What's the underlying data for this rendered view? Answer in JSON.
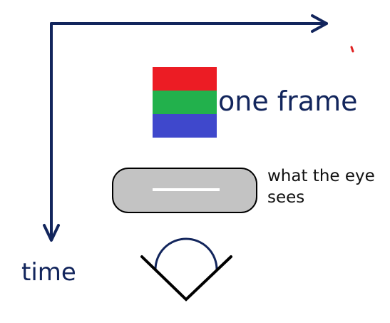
{
  "labels": {
    "time_axis": "time",
    "frame": "one frame",
    "eye_sees": "what the eye sees"
  },
  "frame_stripes": [
    {
      "color": "#ec1c24"
    },
    {
      "color": "#22b14c"
    },
    {
      "color": "#3f48cc"
    }
  ],
  "colors": {
    "axis": "#12255c",
    "label_text": "#12255c",
    "eye_label_text": "#111111",
    "perceived_bar_fill": "#c3c3c3",
    "perceived_bar_line": "#ffffff",
    "eye_outline": "#000000",
    "eye_iris": "#12255c",
    "stray_mark": "#e02020"
  },
  "icons": {
    "eye": "eye-icon",
    "horizontal_axis": "arrow-right-icon",
    "time_axis": "arrow-down-icon"
  }
}
